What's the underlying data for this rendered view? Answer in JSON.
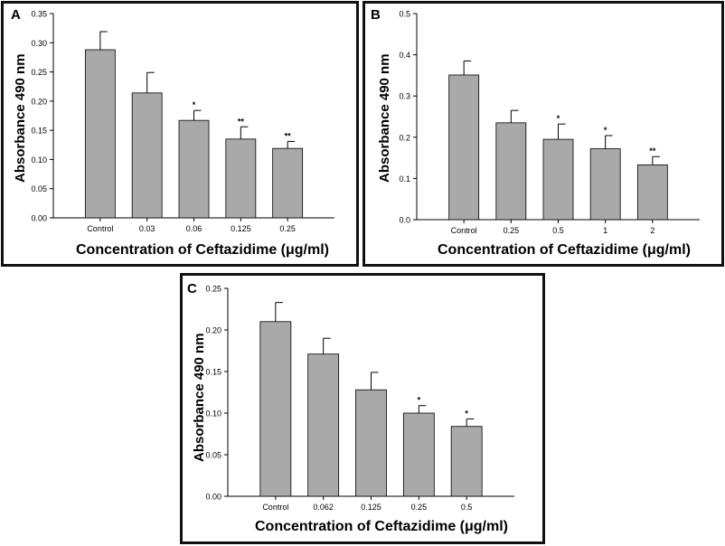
{
  "style": {
    "bar_color": "#a9a9a9",
    "bar_stroke": "#000000",
    "axis_color": "#000000"
  },
  "chart_data": [
    {
      "panel": "A",
      "type": "bar",
      "xlabel": "Concentration of Ceftazidime (μg/ml)",
      "ylabel": "Absorbance 490 nm",
      "ylim": [
        0,
        0.35
      ],
      "yticks": [
        "0.00",
        "0.05",
        "0.10",
        "0.15",
        "0.20",
        "0.25",
        "0.30",
        "0.35"
      ],
      "categories": [
        "Control",
        "0.03",
        "0.06",
        "0.125",
        "0.25"
      ],
      "values": [
        0.288,
        0.214,
        0.167,
        0.135,
        0.119
      ],
      "errors": [
        0.031,
        0.035,
        0.017,
        0.021,
        0.012
      ],
      "annotations": [
        "",
        "",
        "*",
        "**",
        "**"
      ]
    },
    {
      "panel": "B",
      "type": "bar",
      "xlabel": "Concentration of Ceftazidime (μg/ml)",
      "ylabel": "Absorbance 490 nm",
      "ylim": [
        0,
        0.5
      ],
      "yticks": [
        "0.0",
        "0.1",
        "0.2",
        "0.3",
        "0.4",
        "0.5"
      ],
      "categories": [
        "Control",
        "0.25",
        "0.5",
        "1",
        "2"
      ],
      "values": [
        0.351,
        0.235,
        0.195,
        0.172,
        0.133
      ],
      "errors": [
        0.034,
        0.03,
        0.037,
        0.032,
        0.02
      ],
      "annotations": [
        "",
        "",
        "*",
        "*",
        "**"
      ]
    },
    {
      "panel": "C",
      "type": "bar",
      "xlabel": "Concentration of Ceftazidime (μg/ml)",
      "ylabel": "Absorbance 490 nm",
      "ylim": [
        0,
        0.25
      ],
      "yticks": [
        "0.00",
        "0.05",
        "0.10",
        "0.15",
        "0.20",
        "0.25"
      ],
      "categories": [
        "Control",
        "0.062",
        "0.125",
        "0.25",
        "0.5"
      ],
      "values": [
        0.21,
        0.171,
        0.128,
        0.1,
        0.084
      ],
      "errors": [
        0.023,
        0.019,
        0.021,
        0.009,
        0.009
      ],
      "annotations": [
        "",
        "",
        "",
        "*",
        "*"
      ]
    }
  ]
}
